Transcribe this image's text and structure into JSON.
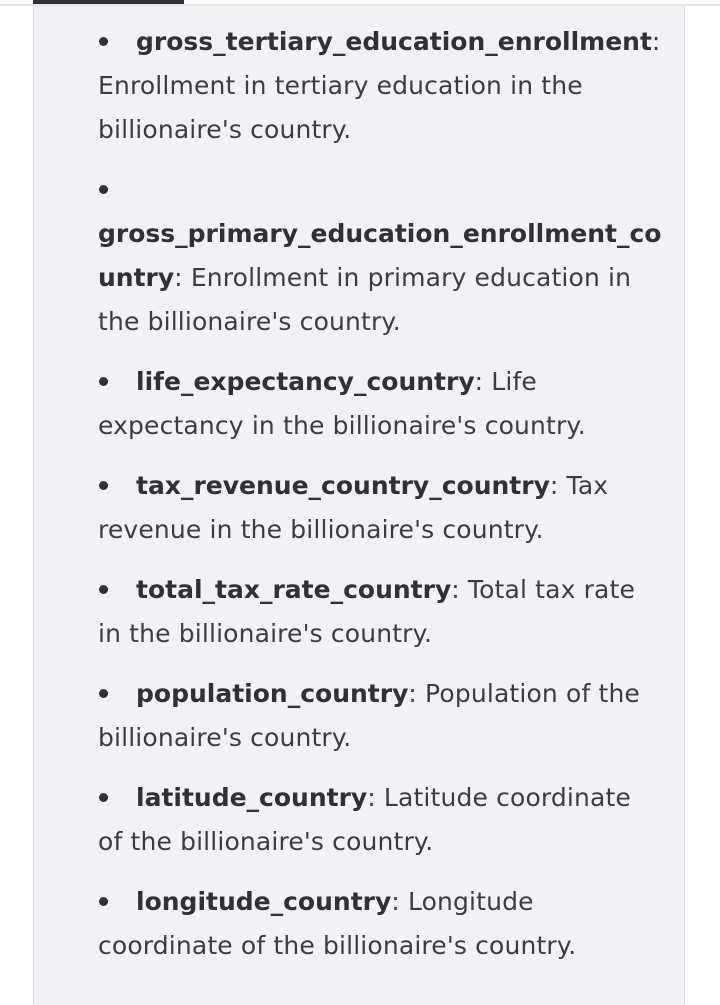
{
  "items": [
    {
      "term": "gross_tertiary_education_enrollment",
      "separator": ":",
      "description": " Enrollment in tertiary education in the billionaire's country."
    },
    {
      "term_line1": "gross_primary_education_enrollment_co",
      "term_line2": "untry",
      "separator": ":",
      "description": " Enrollment in primary education in the billionaire's country."
    },
    {
      "term": "life_expectancy_country",
      "separator": ":",
      "description": " Life expectancy in the billionaire's country."
    },
    {
      "term": "tax_revenue_country_country",
      "separator": ":",
      "description": " Tax revenue in the billionaire's country."
    },
    {
      "term": "total_tax_rate_country",
      "separator": ":",
      "description": " Total tax rate in the billionaire's country."
    },
    {
      "term": "population_country",
      "separator": ":",
      "description": " Population of the billionaire's country."
    },
    {
      "term": "latitude_country",
      "separator": ":",
      "description": " Latitude coordinate of the billionaire's country."
    },
    {
      "term": "longitude_country",
      "separator": ":",
      "description": " Longitude coordinate of the billionaire's country."
    }
  ]
}
